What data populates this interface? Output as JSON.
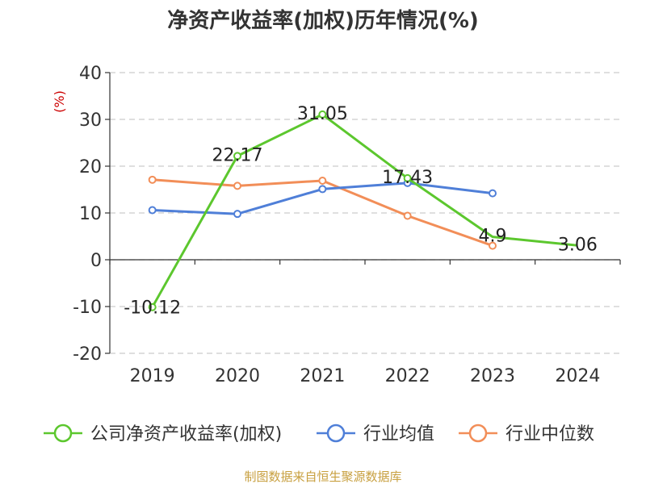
{
  "chart_data": {
    "type": "line",
    "title": "净资产收益率(加权)历年情况(%)",
    "ylabel": "(%)",
    "xlabel": "",
    "categories": [
      "2019",
      "2020",
      "2021",
      "2022",
      "2023",
      "2024"
    ],
    "ylim": [
      -20,
      40
    ],
    "yticks": [
      -20,
      -10,
      0,
      10,
      20,
      30,
      40
    ],
    "grid": true,
    "legend_position": "bottom",
    "series": [
      {
        "name": "公司净资产收益率(加权)",
        "color": "#5cc72e",
        "values": [
          -10.12,
          22.17,
          31.05,
          17.43,
          4.9,
          3.06
        ],
        "data_labels": [
          "-10.12",
          "22.17",
          "31.05",
          "17.43",
          "4.9",
          "3.06"
        ],
        "markers": [
          true,
          true,
          true,
          true,
          false,
          false
        ]
      },
      {
        "name": "行业均值",
        "color": "#4f7fd8",
        "values": [
          10.6,
          9.8,
          15.1,
          16.4,
          14.2,
          null
        ],
        "markers": [
          true,
          true,
          true,
          true,
          true,
          false
        ]
      },
      {
        "name": "行业中位数",
        "color": "#f28e58",
        "values": [
          17.1,
          15.8,
          16.9,
          9.4,
          3.0,
          null
        ],
        "markers": [
          true,
          true,
          true,
          true,
          true,
          false
        ]
      }
    ],
    "source": "制图数据来自恒生聚源数据库"
  }
}
